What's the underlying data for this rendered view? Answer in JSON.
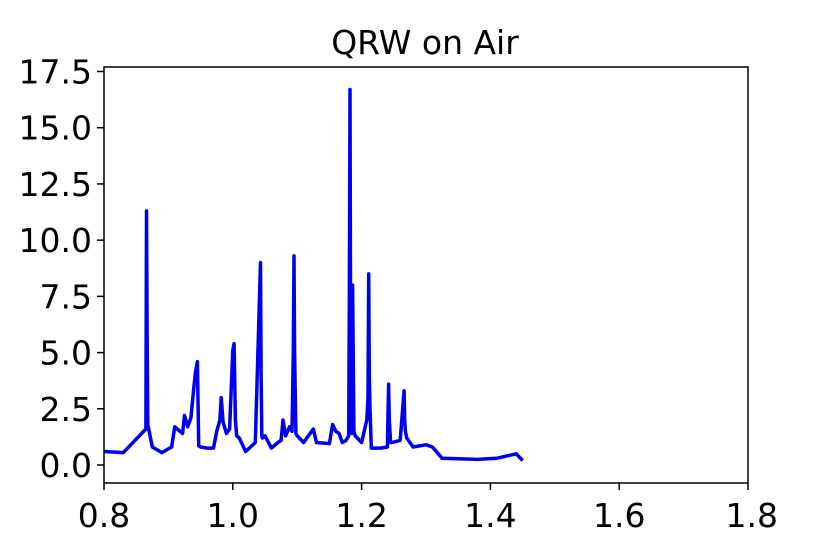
{
  "chart_data": {
    "type": "line",
    "title": "QRW on Air",
    "xlabel": "",
    "ylabel": "",
    "xlim": [
      0.8,
      1.8
    ],
    "ylim": [
      -0.8,
      17.7
    ],
    "xticks": [
      "0.8",
      "1.0",
      "1.2",
      "1.4",
      "1.6",
      "1.8"
    ],
    "yticks": [
      "0.0",
      "2.5",
      "5.0",
      "7.5",
      "10.0",
      "12.5",
      "15.0",
      "17.5"
    ],
    "grid": false,
    "line_color": "#0000ee",
    "series": [
      {
        "x": [
          0.8,
          0.83,
          0.865,
          0.866,
          0.867,
          0.868,
          0.875,
          0.89,
          0.905,
          0.91,
          0.918,
          0.922,
          0.925,
          0.93,
          0.935,
          0.94,
          0.942,
          0.945,
          0.947,
          0.95,
          0.96,
          0.97,
          0.975,
          0.98,
          0.982,
          0.985,
          0.99,
          0.995,
          1.0,
          1.002,
          1.004,
          1.006,
          1.01,
          1.02,
          1.035,
          1.043,
          1.044,
          1.045,
          1.046,
          1.05,
          1.06,
          1.07,
          1.075,
          1.078,
          1.082,
          1.088,
          1.092,
          1.094,
          1.095,
          1.096,
          1.098,
          1.1,
          1.11,
          1.125,
          1.13,
          1.15,
          1.155,
          1.16,
          1.165,
          1.17,
          1.176,
          1.18,
          1.181,
          1.182,
          1.183,
          1.184,
          1.185,
          1.186,
          1.188,
          1.19,
          1.2,
          1.208,
          1.21,
          1.211,
          1.212,
          1.213,
          1.215,
          1.23,
          1.24,
          1.242,
          1.243,
          1.245,
          1.248,
          1.26,
          1.266,
          1.267,
          1.268,
          1.27,
          1.28,
          1.3,
          1.31,
          1.325,
          1.38,
          1.41,
          1.44,
          1.45
        ],
        "y": [
          0.6,
          0.55,
          1.6,
          11.3,
          6.0,
          1.8,
          0.8,
          0.55,
          0.8,
          1.7,
          1.5,
          1.4,
          2.2,
          1.7,
          2.1,
          3.6,
          4.1,
          4.6,
          0.85,
          0.8,
          0.75,
          0.75,
          1.5,
          2.0,
          3.0,
          1.9,
          1.4,
          1.6,
          5.1,
          5.4,
          2.0,
          1.3,
          1.2,
          0.6,
          1.0,
          9.0,
          4.0,
          1.3,
          1.2,
          1.3,
          0.75,
          1.0,
          1.1,
          2.0,
          1.3,
          1.7,
          1.5,
          5.0,
          9.3,
          5.0,
          1.4,
          1.3,
          1.0,
          1.6,
          1.0,
          0.95,
          1.8,
          1.5,
          1.4,
          1.0,
          1.1,
          1.3,
          8.0,
          16.7,
          4.0,
          2.5,
          1.4,
          8.0,
          1.5,
          1.3,
          1.0,
          2.0,
          3.0,
          8.5,
          4.0,
          2.5,
          0.75,
          0.75,
          0.8,
          3.6,
          2.0,
          1.0,
          1.0,
          1.1,
          3.3,
          2.0,
          1.5,
          1.2,
          0.8,
          0.9,
          0.8,
          0.3,
          0.25,
          0.3,
          0.5,
          0.2
        ]
      }
    ]
  }
}
